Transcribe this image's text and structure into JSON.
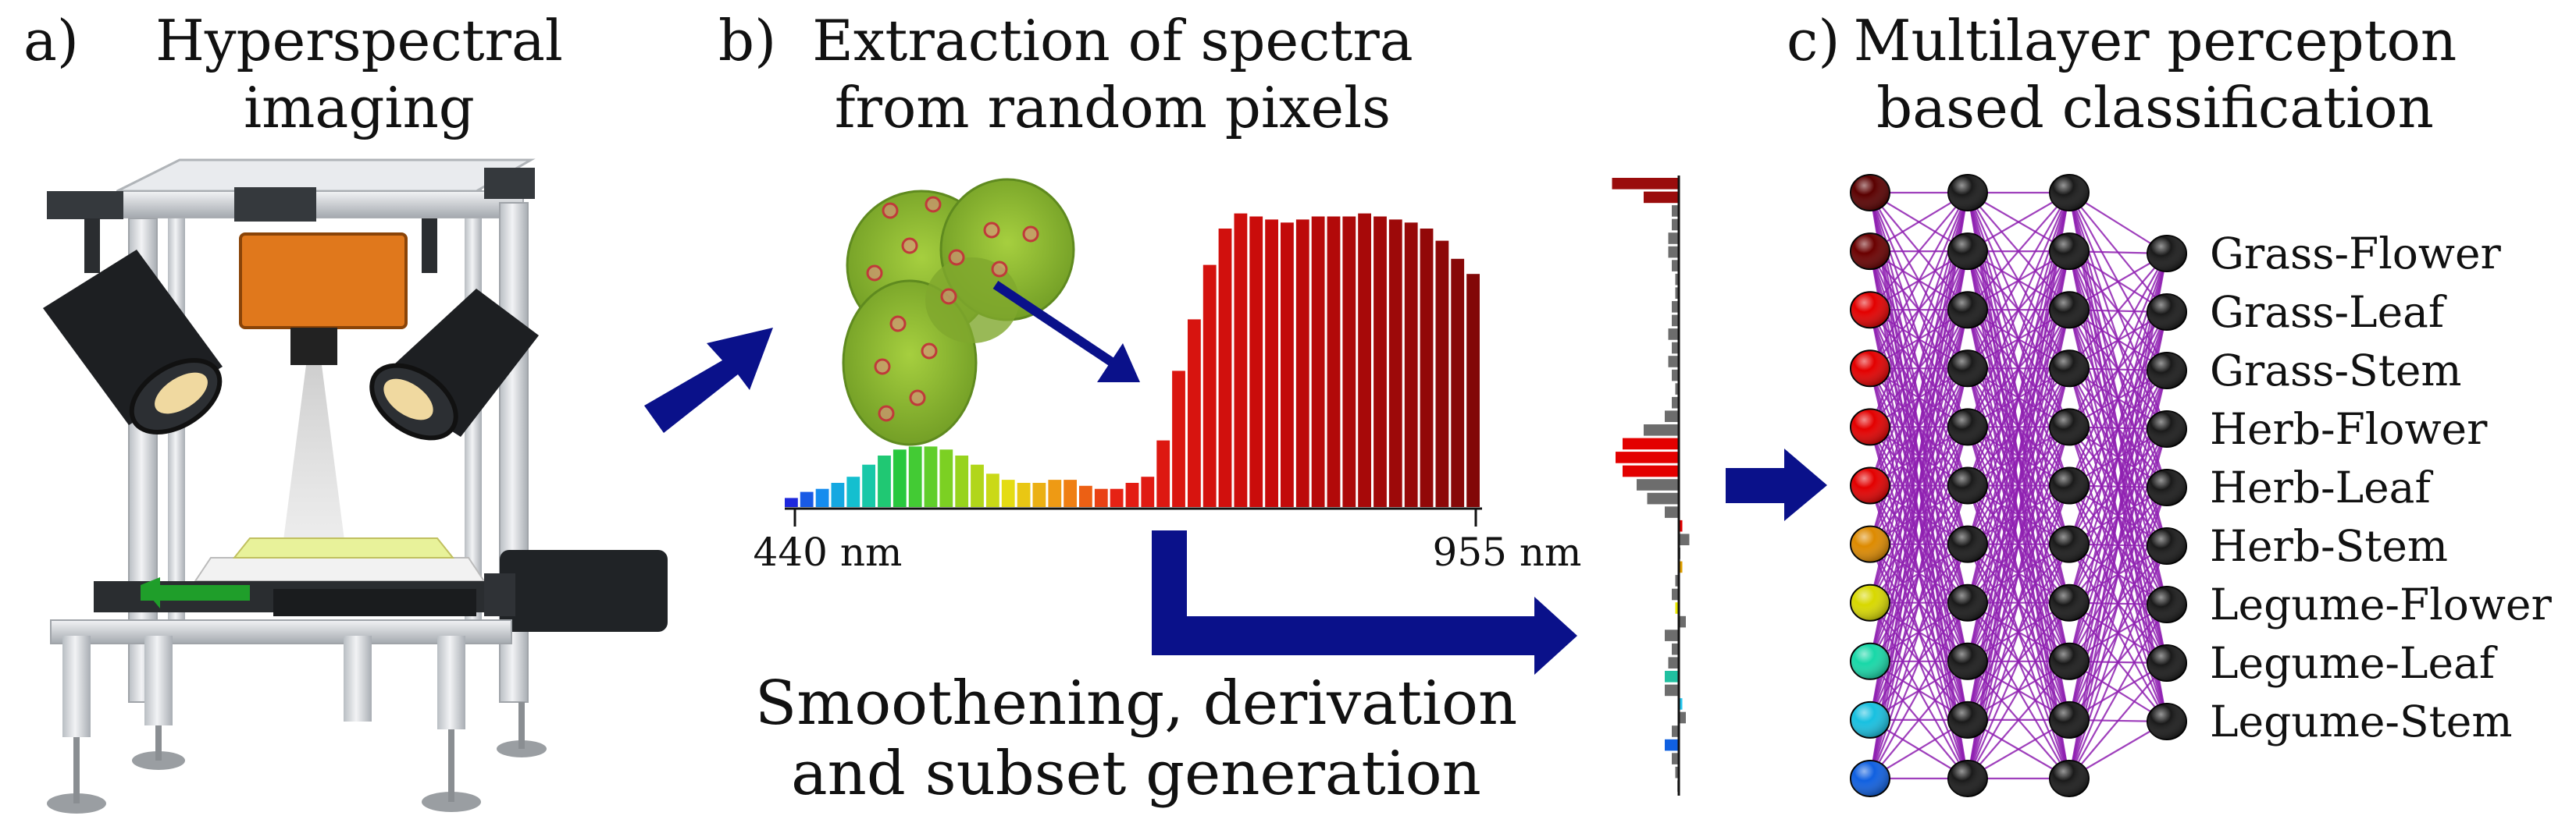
{
  "panel_a": {
    "letter": "a)",
    "title_line1": "Hyperspectral",
    "title_line2": "imaging"
  },
  "panel_b": {
    "letter": "b)",
    "title_line1": "Extraction of spectra",
    "title_line2": "from random pixels",
    "axis_start": "440 nm",
    "axis_end": "955 nm",
    "caption_line1": "Smoothening, derivation",
    "caption_line2": "and subset generation"
  },
  "panel_c": {
    "letter": "c)",
    "title_line1": "Multilayer percepton",
    "title_line2": "based classification",
    "classes": [
      "Grass-Flower",
      "Grass-Leaf",
      "Grass-Stem",
      "Herb-Flower",
      "Herb-Leaf",
      "Herb-Stem",
      "Legume-Flower",
      "Legume-Leaf",
      "Legume-Stem"
    ]
  },
  "colors": {
    "arrow": "#0a118a",
    "network_edge": "#8e1fb0",
    "spectrum_high": "#9a0c0c",
    "derivative_grey": "#6d6d6d"
  },
  "spectrum_levels": [
    0.03,
    0.05,
    0.06,
    0.08,
    0.1,
    0.14,
    0.17,
    0.19,
    0.2,
    0.2,
    0.19,
    0.17,
    0.14,
    0.11,
    0.09,
    0.08,
    0.08,
    0.09,
    0.09,
    0.07,
    0.06,
    0.06,
    0.08,
    0.1,
    0.22,
    0.45,
    0.62,
    0.8,
    0.92,
    0.97,
    0.96,
    0.95,
    0.94,
    0.95,
    0.96,
    0.96,
    0.96,
    0.97,
    0.96,
    0.95,
    0.94,
    0.92,
    0.88,
    0.82,
    0.77
  ],
  "derivative_levels": [
    0.95,
    0.5,
    0.1,
    0.1,
    0.15,
    0.15,
    0.1,
    0.05,
    0.05,
    0.1,
    0.1,
    0.15,
    0.1,
    0.15,
    0.1,
    0.05,
    0.1,
    0.2,
    0.5,
    0.8,
    0.9,
    0.8,
    0.6,
    0.45,
    0.2,
    -0.05,
    -0.15,
    0,
    -0.05,
    0.05,
    0.1,
    0.05,
    -0.1,
    0.2,
    0.1,
    0.15,
    0.2,
    0.2,
    -0.05,
    -0.1,
    0.1,
    0.2,
    0.1,
    0.05,
    0.02
  ],
  "input_node_colors": [
    "#5a0000",
    "#6a0000",
    "#e30000",
    "#e30000",
    "#e30000",
    "#e30000",
    "#dd8a00",
    "#d8d800",
    "#18d8a8",
    "#18c0e0",
    "#1060e0"
  ],
  "hidden_layer_nodes": 11,
  "output_layer_nodes": 9
}
